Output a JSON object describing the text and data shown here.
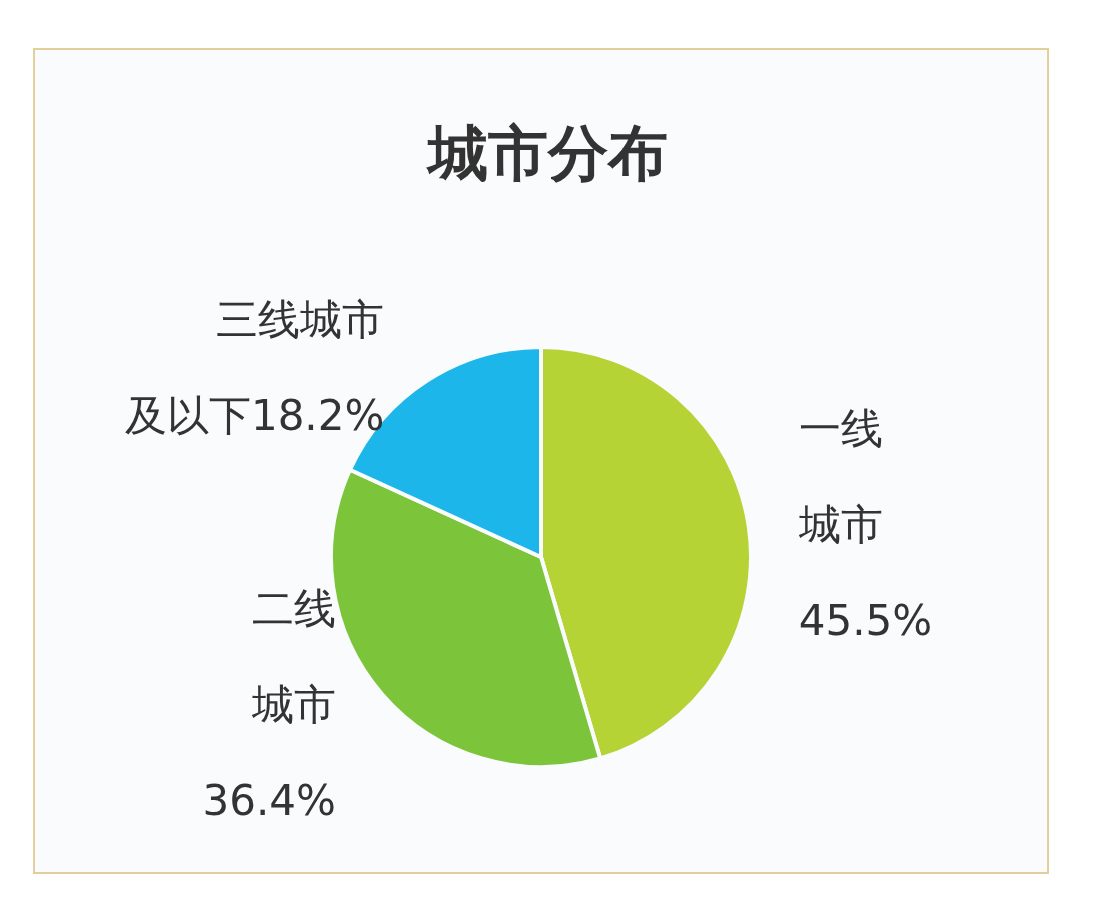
{
  "chart_data": {
    "type": "pie",
    "title": "城市分布",
    "categories": [
      "一线城市",
      "二线城市",
      "三线城市及以下"
    ],
    "values": [
      45.5,
      36.4,
      18.2
    ],
    "value_labels": [
      "45.5%",
      "36.4%",
      "18.2%"
    ],
    "colors": [
      "#b5d334",
      "#7cc43a",
      "#1cb6ea"
    ],
    "legend": false
  }
}
